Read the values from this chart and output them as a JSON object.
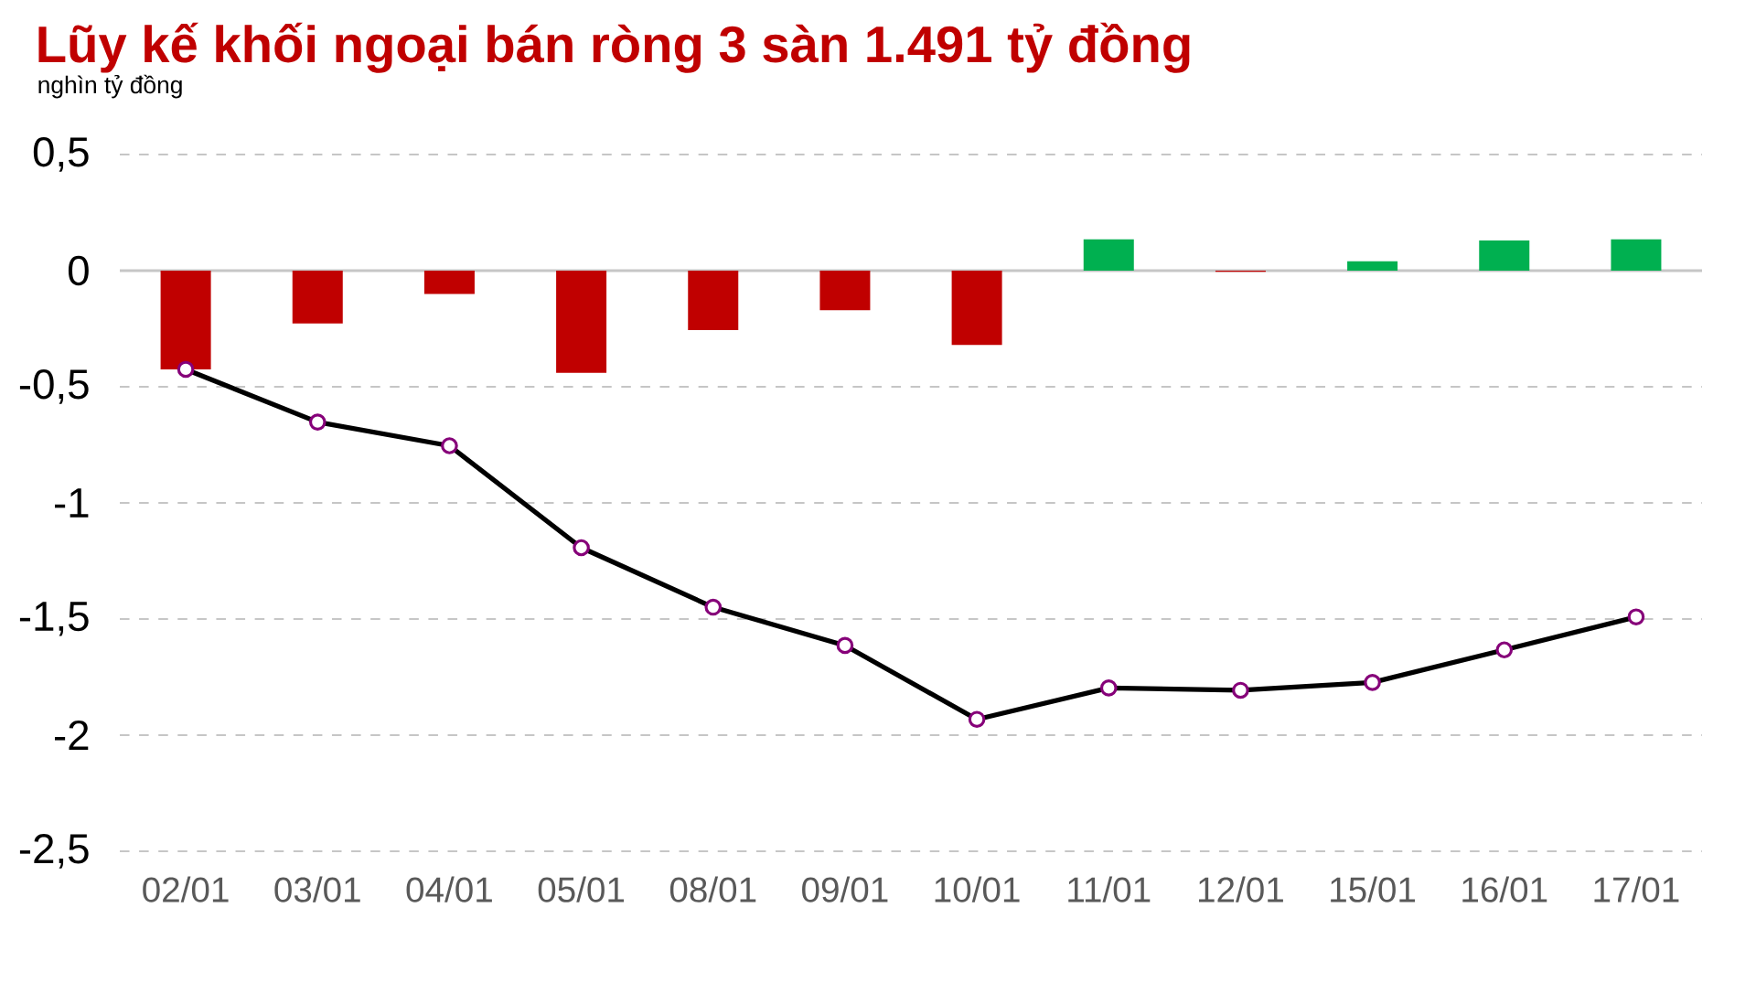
{
  "chart_data": {
    "type": "bar",
    "title": "Lũy kế khối ngoại bán ròng 3 sàn 1.491 tỷ đồng",
    "subtitle": "nghìn tỷ đồng",
    "categories": [
      "02/01",
      "03/01",
      "04/01",
      "05/01",
      "08/01",
      "09/01",
      "10/01",
      "11/01",
      "12/01",
      "15/01",
      "16/01",
      "17/01"
    ],
    "series": [
      {
        "values": [
          -0.425,
          -0.227,
          -0.1,
          -0.44,
          -0.256,
          -0.17,
          -0.32,
          0.135,
          -0.005,
          0.04,
          0.13,
          0.135
        ],
        "colors": [
          "#c00000",
          "#c00000",
          "#c00000",
          "#c00000",
          "#c00000",
          "#c00000",
          "#c00000",
          "#00b050",
          "#c00000",
          "#00b050",
          "#00b050",
          "#00b050"
        ]
      },
      {
        "type": "line",
        "color": "#000000",
        "marker": "circle",
        "values": [
          -0.425,
          -0.652,
          -0.754,
          -1.193,
          -1.449,
          -1.614,
          -1.932,
          -1.797,
          -1.807,
          -1.773,
          -1.633,
          -1.491
        ]
      }
    ],
    "ylim": [
      -2.5,
      0.5
    ],
    "yticks": [
      {
        "value": 0.5,
        "label": "0,5"
      },
      0,
      {
        "value": -0.5,
        "label": "-0,5"
      },
      -1,
      {
        "value": -1.5,
        "label": "-1,5"
      },
      -2,
      {
        "value": -2.5,
        "label": "-2,5"
      }
    ],
    "grid": "y"
  }
}
